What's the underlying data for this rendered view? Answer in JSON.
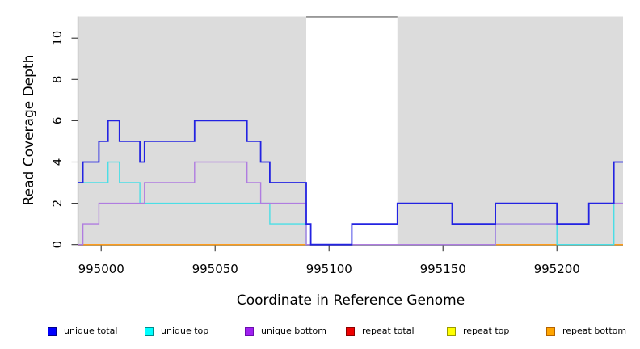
{
  "chart_data": {
    "type": "line",
    "line_style": "step",
    "title": "",
    "xlabel": "Coordinate in Reference Genome",
    "ylabel": "Read Coverage Depth",
    "xlim": [
      994990,
      995229
    ],
    "ylim": [
      0,
      11.05
    ],
    "x_ticks": [
      995000,
      995050,
      995100,
      995150,
      995200
    ],
    "y_ticks": [
      0,
      2,
      4,
      6,
      8,
      10
    ],
    "grid": false,
    "legend_position": "bottom",
    "panel_color": "#dcdcdc",
    "gap_border_color": "#8a8a8a",
    "axis_color": "#1a1a1a",
    "background_bands": [
      {
        "from": 994990,
        "to": 995090,
        "color": "#dcdcdc"
      },
      {
        "from": 995130,
        "to": 995229,
        "color": "#dcdcdc"
      }
    ],
    "white_gap": {
      "from": 995090,
      "to": 995130
    },
    "series": [
      {
        "name": "repeat total",
        "color": "#de2626",
        "width": 1.4,
        "points": [
          [
            994990,
            0
          ]
        ]
      },
      {
        "name": "repeat top",
        "color": "#ffff33",
        "width": 1.4,
        "points": [
          [
            994990,
            0
          ]
        ]
      },
      {
        "name": "repeat bottom",
        "color": "#ff9c1e",
        "width": 1.4,
        "points": [
          [
            994990,
            0
          ]
        ]
      },
      {
        "name": "unique top",
        "color": "#4adee6",
        "width": 1.4,
        "points": [
          [
            994990,
            3
          ],
          [
            995003,
            4
          ],
          [
            995008,
            3
          ],
          [
            995017,
            2
          ],
          [
            995074,
            1
          ],
          [
            995090,
            0
          ],
          [
            995173,
            1
          ],
          [
            995200,
            0
          ],
          [
            995225,
            2
          ]
        ]
      },
      {
        "name": "unique bottom",
        "color": "#b07ce0",
        "width": 1.4,
        "points": [
          [
            994990,
            0
          ],
          [
            994992,
            1
          ],
          [
            994999,
            2
          ],
          [
            995019,
            3
          ],
          [
            995041,
            4
          ],
          [
            995064,
            3
          ],
          [
            995070,
            2
          ],
          [
            995090,
            0
          ],
          [
            995173,
            1
          ],
          [
            995214,
            2
          ]
        ]
      },
      {
        "name": "unique total",
        "color": "#2323e2",
        "width": 1.8,
        "points": [
          [
            994990,
            3
          ],
          [
            994992,
            4
          ],
          [
            994999,
            5
          ],
          [
            995003,
            6
          ],
          [
            995008,
            5
          ],
          [
            995017,
            4
          ],
          [
            995019,
            5
          ],
          [
            995041,
            6
          ],
          [
            995064,
            5
          ],
          [
            995070,
            4
          ],
          [
            995074,
            3
          ],
          [
            995090,
            1
          ],
          [
            995092,
            0
          ],
          [
            995110,
            1
          ],
          [
            995130,
            2
          ],
          [
            995154,
            1
          ],
          [
            995173,
            2
          ],
          [
            995200,
            1
          ],
          [
            995214,
            2
          ],
          [
            995225,
            4
          ]
        ]
      }
    ],
    "legend": [
      {
        "label": "unique total",
        "fill": "#0000ff",
        "border": "#00008b"
      },
      {
        "label": "unique top",
        "fill": "#00ffff",
        "border": "#008b8b"
      },
      {
        "label": "unique bottom",
        "fill": "#a020f0",
        "border": "#6a0dad"
      },
      {
        "label": "repeat total",
        "fill": "#ee0000",
        "border": "#8b0000"
      },
      {
        "label": "repeat top",
        "fill": "#ffff00",
        "border": "#9a9a00"
      },
      {
        "label": "repeat bottom",
        "fill": "#ffa500",
        "border": "#b36200"
      }
    ]
  }
}
